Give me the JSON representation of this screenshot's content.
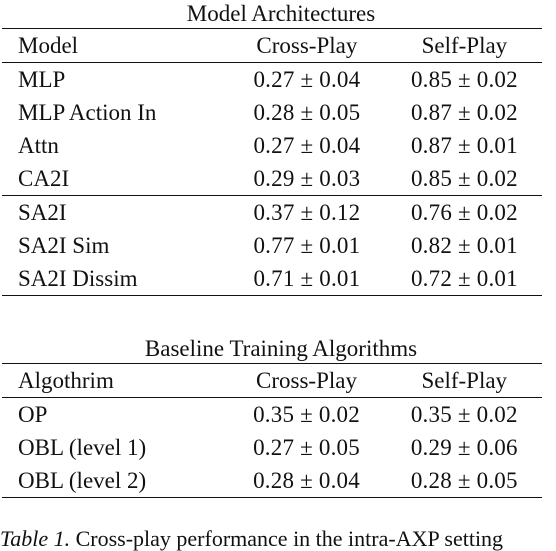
{
  "table1": {
    "title": "Model Architectures",
    "headers": [
      "Model",
      "Cross-Play",
      "Self-Play"
    ],
    "rows": [
      [
        "MLP",
        "0.27 ± 0.04",
        "0.85 ± 0.02"
      ],
      [
        "MLP Action In",
        "0.28 ± 0.05",
        "0.87 ± 0.02"
      ],
      [
        "Attn",
        "0.27 ± 0.04",
        "0.87 ± 0.01"
      ],
      [
        "CA2I",
        "0.29 ± 0.03",
        "0.85 ± 0.02"
      ],
      [
        "SA2I",
        "0.37 ± 0.12",
        "0.76 ± 0.02"
      ],
      [
        "SA2I Sim",
        "0.77 ± 0.01",
        "0.82 ± 0.01"
      ],
      [
        "SA2I Dissim",
        "0.71 ± 0.01",
        "0.72 ± 0.01"
      ]
    ]
  },
  "table2": {
    "title": "Baseline Training Algorithms",
    "headers": [
      "Algothrim",
      "Cross-Play",
      "Self-Play"
    ],
    "rows": [
      [
        "OP",
        "0.35 ± 0.02",
        "0.35 ± 0.02"
      ],
      [
        "OBL (level 1)",
        "0.27 ± 0.05",
        "0.29 ± 0.06"
      ],
      [
        "OBL (level 2)",
        "0.28 ± 0.04",
        "0.28 ± 0.05"
      ]
    ]
  },
  "caption": {
    "label": "Table 1.",
    "text": "Cross-play performance in the intra-AXP setting"
  }
}
